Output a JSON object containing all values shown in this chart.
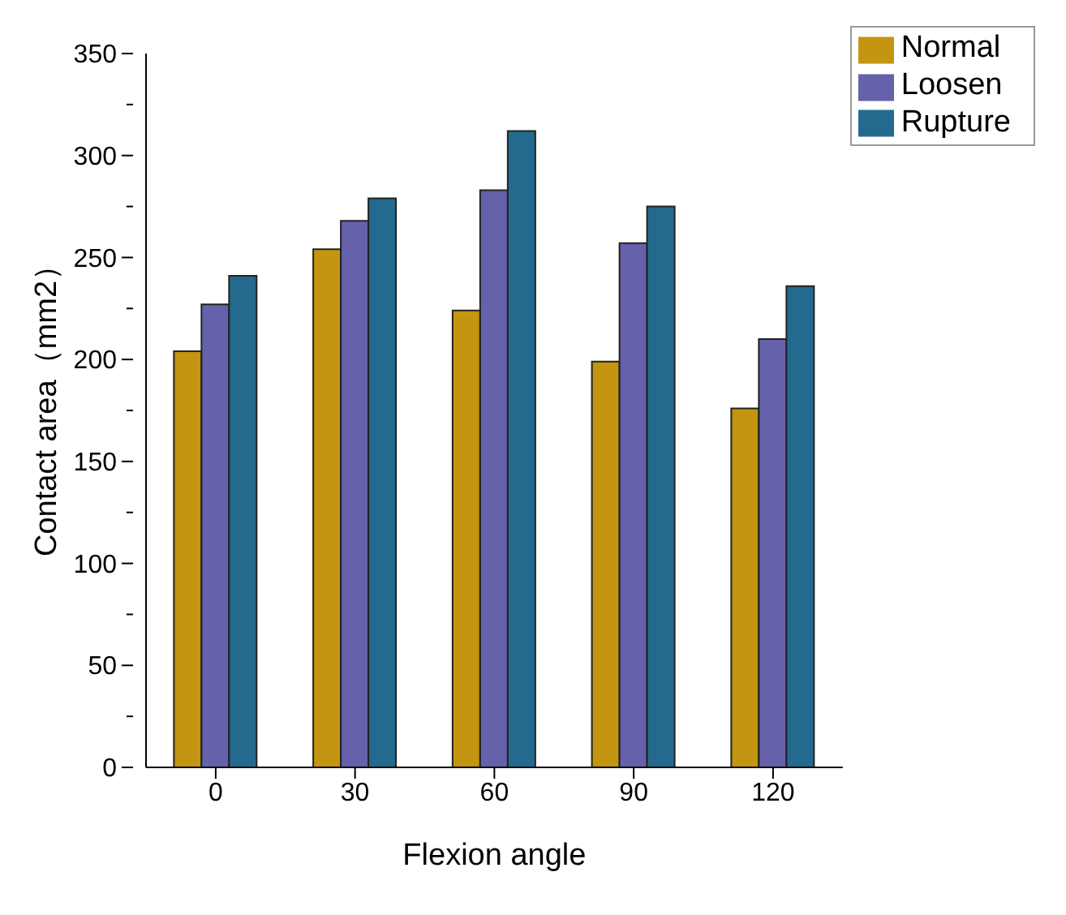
{
  "chart_data": {
    "type": "bar",
    "xlabel": "Flexion angle",
    "ylabel": "Contact area（mm2）",
    "categories": [
      "0",
      "30",
      "60",
      "90",
      "120"
    ],
    "series": [
      {
        "name": "Normal",
        "color": "#c49510",
        "values": [
          204,
          254,
          224,
          199,
          176
        ]
      },
      {
        "name": "Loosen",
        "color": "#6661ab",
        "values": [
          227,
          268,
          283,
          257,
          210
        ]
      },
      {
        "name": "Rupture",
        "color": "#236a8e",
        "values": [
          241,
          279,
          312,
          275,
          236
        ]
      }
    ],
    "ylim": [
      0,
      350
    ],
    "yticks": [
      0,
      {
        "value": 25,
        "label": null
      },
      50,
      {
        "value": 75,
        "label": null
      },
      100,
      {
        "value": 125,
        "label": null
      },
      150,
      {
        "value": 175,
        "label": null
      },
      200,
      {
        "value": 225,
        "label": null
      },
      250,
      {
        "value": 275,
        "label": null
      },
      300,
      {
        "value": 325,
        "label": null
      },
      350
    ],
    "grid": false,
    "legend": "top right"
  }
}
